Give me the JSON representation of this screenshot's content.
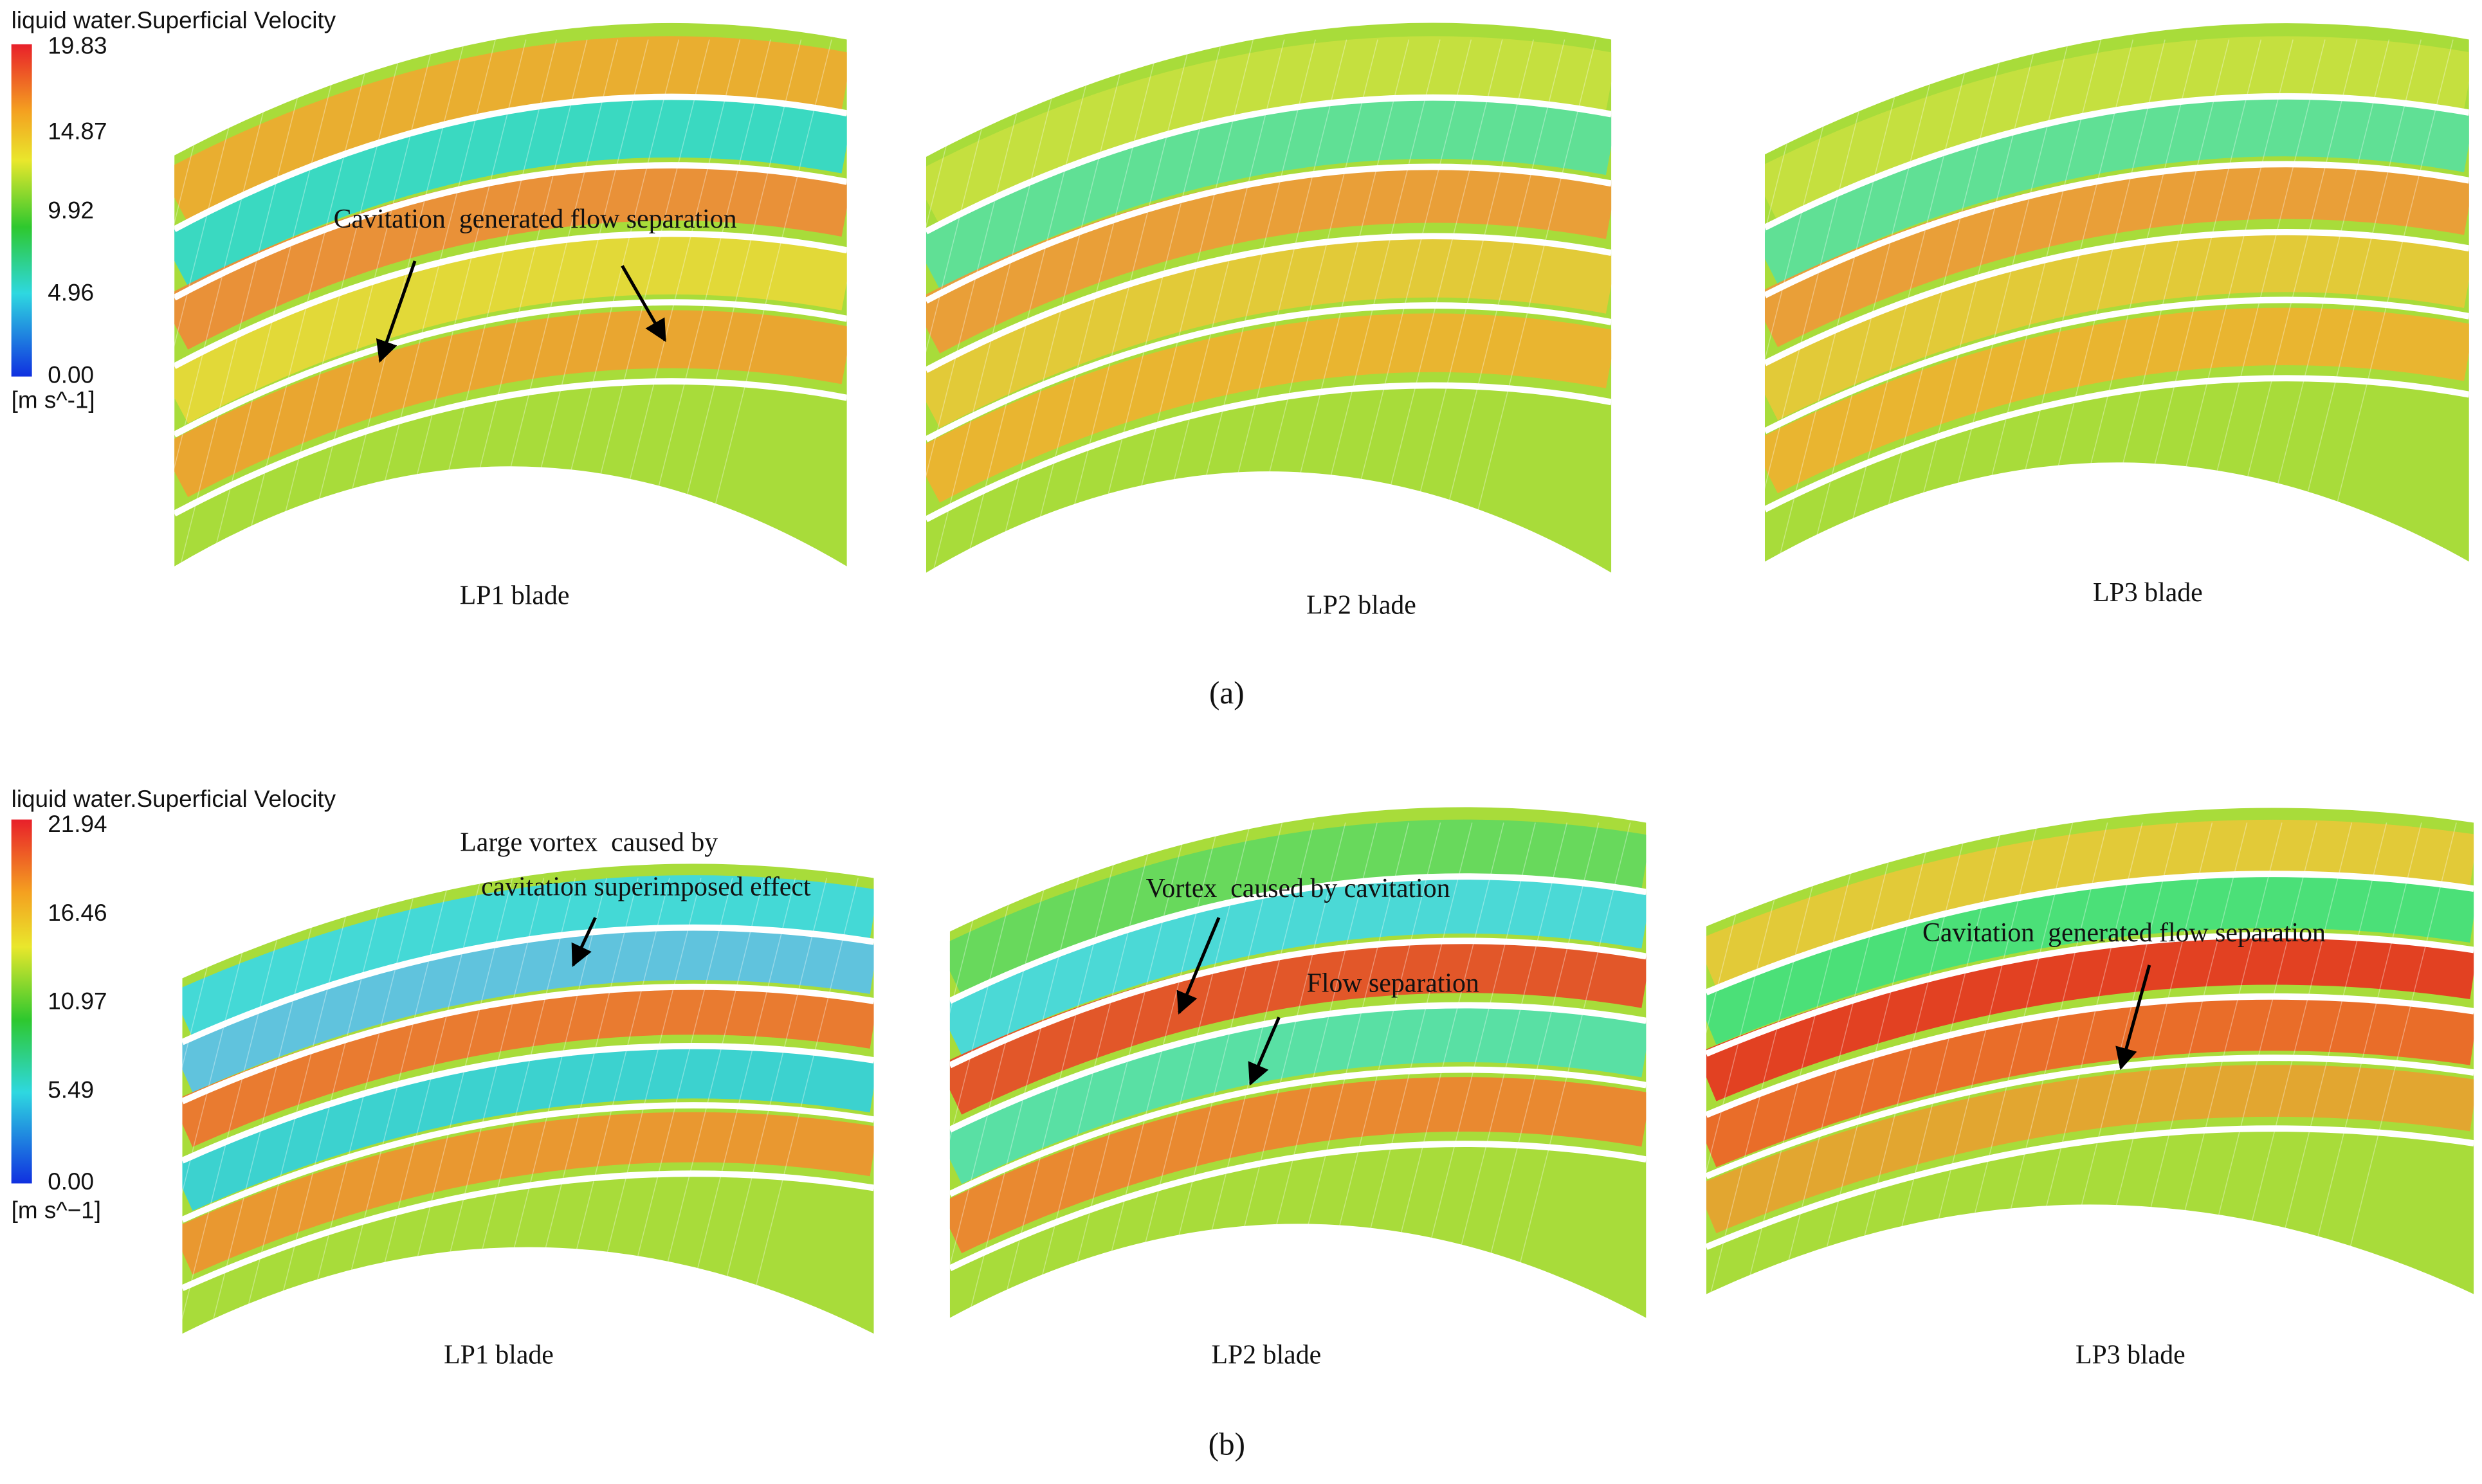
{
  "panels": [
    {
      "label": "(a)",
      "colorbar": {
        "title": "liquid water.Superficial Velocity",
        "ticks": [
          "19.83",
          "14.87",
          "9.92",
          "4.96",
          "0.00"
        ],
        "unit": "[m s^-1]"
      },
      "images": [
        {
          "caption": "LP1 blade",
          "annotations": [
            "Cavitation  generated flow separation"
          ]
        },
        {
          "caption": "LP2 blade"
        },
        {
          "caption": "LP3 blade"
        }
      ]
    },
    {
      "label": "(b)",
      "colorbar": {
        "title": "liquid water.Superficial Velocity",
        "ticks": [
          "21.94",
          "16.46",
          "10.97",
          "5.49",
          "0.00"
        ],
        "unit": "[m s^−1]"
      },
      "images": [
        {
          "caption": "LP1 blade",
          "annotations": [
            "Large vortex  caused by",
            "cavitation superimposed effect"
          ]
        },
        {
          "caption": "LP2 blade",
          "annotations": [
            "Vortex  caused by cavitation",
            "Flow separation"
          ]
        },
        {
          "caption": "LP3 blade",
          "annotations": [
            "Cavitation  generated flow separation"
          ]
        }
      ]
    }
  ]
}
